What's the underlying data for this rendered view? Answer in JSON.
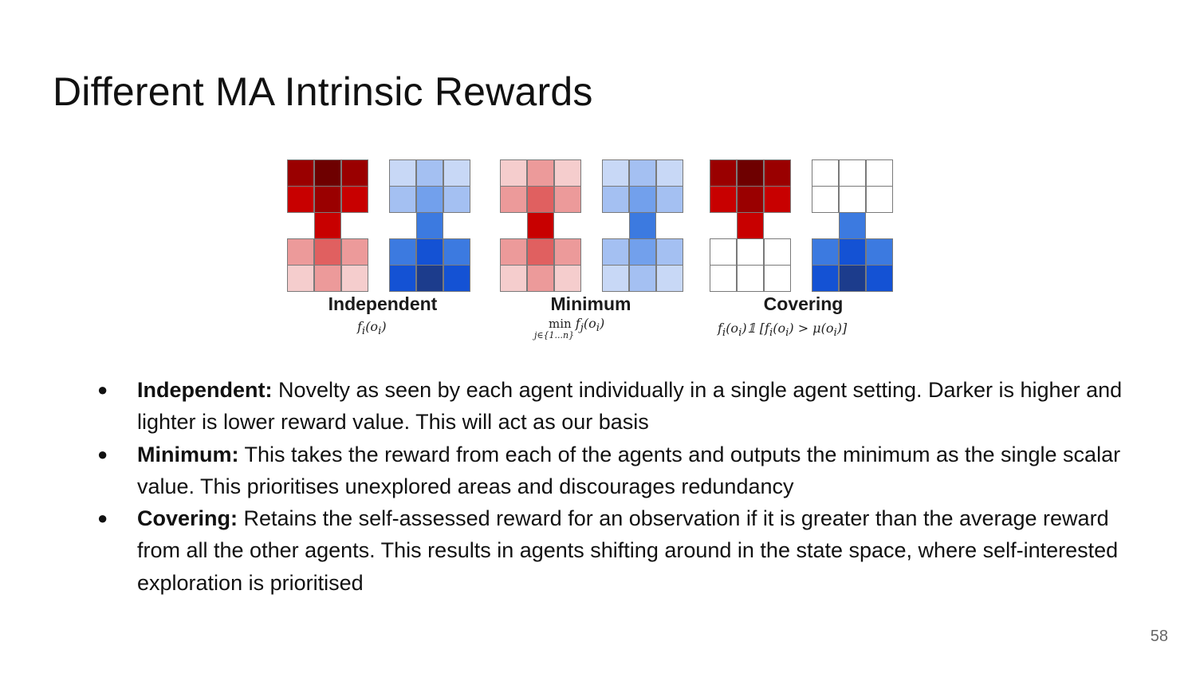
{
  "title": "Different MA Intrinsic Rewards",
  "figure": {
    "panels": [
      {
        "label": "Independent",
        "formula": "f<sub>i</sub>(o<sub>i</sub>)",
        "grids": [
          {
            "color_scheme": "red",
            "cells": [
              "#9a0000",
              "#6e0000",
              "#9a0000",
              "#c80000",
              "#9a0000",
              "#c80000",
              "#c80000",
              "#ec9a9a",
              "#e06060",
              "#ec9a9a",
              "#f5cdcd",
              "#ec9a9a",
              "#f5cdcd"
            ]
          },
          {
            "color_scheme": "blue",
            "cells": [
              "#c8d8f6",
              "#a4c0f2",
              "#c8d8f6",
              "#a4c0f2",
              "#72a0ec",
              "#a4c0f2",
              "#3c7ae0",
              "#3c7ae0",
              "#1452d4",
              "#3c7ae0",
              "#1452d4",
              "#1c3c8c",
              "#1452d4"
            ]
          }
        ]
      },
      {
        "label": "Minimum",
        "formula": "min f<sub>j</sub>(o<sub>i</sub>)",
        "formula_sub": "j∈{1...n}",
        "grids": [
          {
            "color_scheme": "red",
            "cells": [
              "#f5cdcd",
              "#ec9a9a",
              "#f5cdcd",
              "#ec9a9a",
              "#e06060",
              "#ec9a9a",
              "#c80000",
              "#ec9a9a",
              "#e06060",
              "#ec9a9a",
              "#f5cdcd",
              "#ec9a9a",
              "#f5cdcd"
            ]
          },
          {
            "color_scheme": "blue",
            "cells": [
              "#c8d8f6",
              "#a4c0f2",
              "#c8d8f6",
              "#a4c0f2",
              "#72a0ec",
              "#a4c0f2",
              "#3c7ae0",
              "#a4c0f2",
              "#72a0ec",
              "#a4c0f2",
              "#c8d8f6",
              "#a4c0f2",
              "#c8d8f6"
            ]
          }
        ]
      },
      {
        "label": "Covering",
        "formula": "f<sub>i</sub>(o<sub>i</sub>)𝟙 [f<sub>i</sub>(o<sub>i</sub>) > μ(o<sub>i</sub>)]",
        "grids": [
          {
            "color_scheme": "red",
            "cells": [
              "#9a0000",
              "#6e0000",
              "#9a0000",
              "#c80000",
              "#9a0000",
              "#c80000",
              "#c80000",
              "#ffffff",
              "#ffffff",
              "#ffffff",
              "#ffffff",
              "#ffffff",
              "#ffffff"
            ]
          },
          {
            "color_scheme": "blue",
            "cells": [
              "#ffffff",
              "#ffffff",
              "#ffffff",
              "#ffffff",
              "#ffffff",
              "#ffffff",
              "#3c7ae0",
              "#3c7ae0",
              "#1452d4",
              "#3c7ae0",
              "#1452d4",
              "#1c3c8c",
              "#1452d4"
            ]
          }
        ]
      }
    ]
  },
  "bullets": [
    {
      "term": "Independent:",
      "text": " Novelty as seen by each agent individually in a single agent setting. Darker is higher and lighter is lower reward value. This will act as our basis"
    },
    {
      "term": "Minimum:",
      "text": " This takes the reward from each of the agents and outputs the minimum as the single scalar value. This prioritises unexplored areas and discourages redundancy"
    },
    {
      "term": "Covering:",
      "text": " Retains the self-assessed reward for an observation if it is greater than the average reward from all the other agents. This results in agents shifting around in the state space, where self-interested exploration is prioritised"
    }
  ],
  "bullet_symbol": "●",
  "page_number": "58"
}
